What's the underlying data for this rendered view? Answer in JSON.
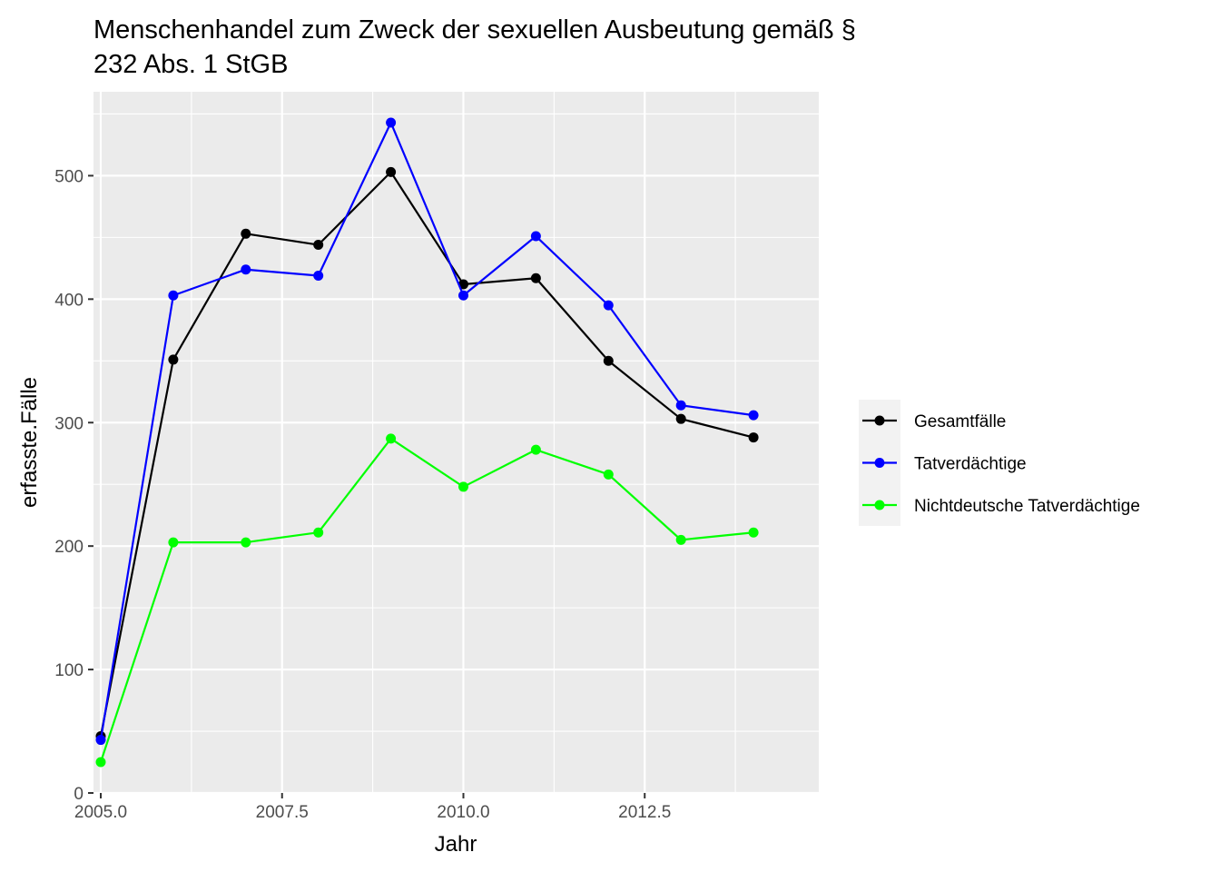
{
  "chart_data": {
    "type": "line",
    "title_lines": [
      "Menschenhandel zum Zweck der sexuellen Ausbeutung gemäß §",
      "232 Abs. 1 StGB"
    ],
    "xlabel": "Jahr",
    "ylabel": "erfasste.Fälle",
    "x": [
      2005,
      2006,
      2007,
      2008,
      2009,
      2010,
      2011,
      2012,
      2013,
      2014
    ],
    "xlim": [
      2004.9,
      2014.9
    ],
    "ylim": [
      0,
      568
    ],
    "x_ticks": [
      2005,
      2007.5,
      2010,
      2012.5
    ],
    "x_tick_labels": [
      "2005.0",
      "2007.5",
      "2010.0",
      "2012.5"
    ],
    "y_ticks": [
      0,
      100,
      200,
      300,
      400,
      500
    ],
    "y_tick_labels": [
      "0",
      "100",
      "200",
      "300",
      "400",
      "500"
    ],
    "grid": true,
    "legend_position": "right",
    "series": [
      {
        "name": "Gesamtfälle",
        "color": "#000000",
        "values": [
          46,
          351,
          453,
          444,
          503,
          412,
          417,
          350,
          303,
          288
        ]
      },
      {
        "name": "Tatverdächtige",
        "color": "#0000ff",
        "values": [
          43,
          403,
          424,
          419,
          543,
          403,
          451,
          395,
          314,
          306
        ]
      },
      {
        "name": "Nichtdeutsche Tatverdächtige",
        "color": "#00ff00",
        "values": [
          25,
          203,
          203,
          211,
          287,
          248,
          278,
          258,
          205,
          211
        ]
      }
    ]
  }
}
